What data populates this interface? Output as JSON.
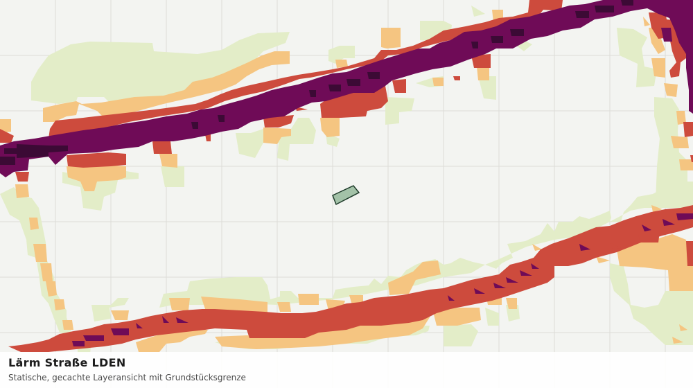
{
  "caption": {
    "title": "Lärm Straße LDEN",
    "subtitle": "Statische, gecachte Layeransicht mit Grundstücksgrenze"
  },
  "colors": {
    "background": "#f3f4f1",
    "grid": "#dcdcd8",
    "noise_level_1": "#e3edc8",
    "noise_level_2": "#f5c581",
    "noise_level_3": "#cd4b3d",
    "noise_level_4": "#6f0b57",
    "noise_level_5": "#3c0a35",
    "parcel_fill": "#a3c2a8",
    "parcel_stroke": "#1e3b2a"
  },
  "layers": [
    "noise-level-1",
    "noise-level-2",
    "noise-level-3",
    "noise-level-4",
    "noise-level-5",
    "parcel-boundary"
  ]
}
